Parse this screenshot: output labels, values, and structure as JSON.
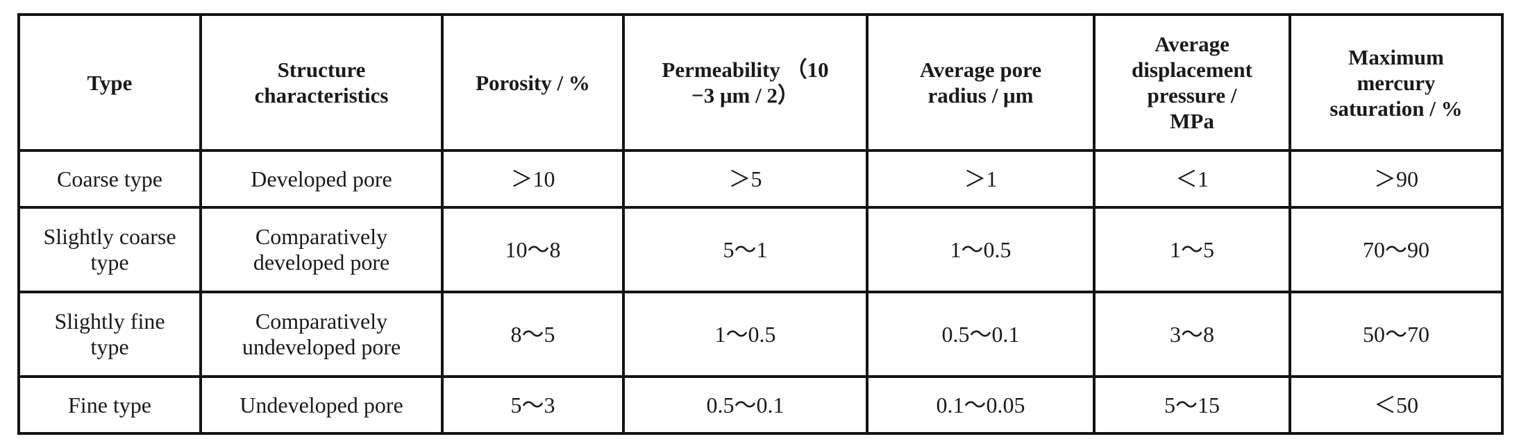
{
  "table": {
    "headers": [
      "Type",
      "Structure\ncharacteristics",
      "Porosity / %",
      "Permeability （10\n−3 μm / 2）",
      "Average pore\nradius / μm",
      "Average\ndisplacement\npressure /\nMPa",
      "Maximum\nmercury\nsaturation / %"
    ],
    "rows": [
      [
        "Coarse type",
        "Developed pore",
        "＞10",
        "＞5",
        "＞1",
        "＜1",
        "＞90"
      ],
      [
        "Slightly coarse\ntype",
        "Comparatively\ndeveloped pore",
        "10～8",
        "5～1",
        "1～0.5",
        "1～5",
        "70～90"
      ],
      [
        "Slightly fine\ntype",
        "Comparatively\nundeveloped pore",
        "8～5",
        "1～0.5",
        "0.5～0.1",
        "3～8",
        "50～70"
      ],
      [
        "Fine type",
        "Undeveloped pore",
        "5～3",
        "0.5～0.1",
        "0.1～0.05",
        "5～15",
        "＜50"
      ]
    ]
  }
}
